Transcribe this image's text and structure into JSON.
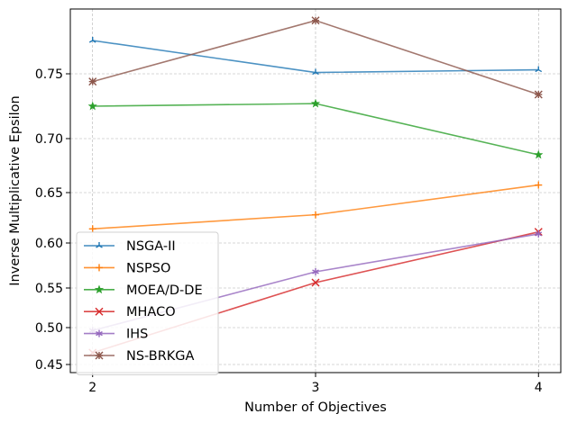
{
  "chart_data": {
    "type": "line",
    "title": "",
    "xlabel": "Number of Objectives",
    "ylabel": "Inverse Multiplicative Epsilon",
    "x": [
      2,
      3,
      4
    ],
    "xlim": [
      1.9,
      4.1
    ],
    "xticks": [
      2,
      3,
      4
    ],
    "yticks": [
      {
        "label": "0.45",
        "value": 0.45
      },
      {
        "label": "0.50",
        "value": 0.5
      },
      {
        "label": "0.55",
        "value": 0.55
      },
      {
        "label": "0.60",
        "value": 0.6
      },
      {
        "label": "0.65",
        "value": 0.65
      },
      {
        "label": "0.70",
        "value": 0.7
      },
      {
        "label": "0.75",
        "value": 0.75
      }
    ],
    "grid": true,
    "legend_position": "lower-left",
    "series": [
      {
        "name": "NSGA-II",
        "values": [
          0.775,
          0.751,
          0.753
        ],
        "color": "#1f77b4",
        "marker": "tri-star"
      },
      {
        "name": "NSPSO",
        "values": [
          0.614,
          0.628,
          0.657
        ],
        "color": "#ff7f0e",
        "marker": "plus"
      },
      {
        "name": "MOEA/D-DE",
        "values": [
          0.725,
          0.727,
          0.685
        ],
        "color": "#2ca02c",
        "marker": "star"
      },
      {
        "name": "MHACO",
        "values": [
          0.466,
          0.556,
          0.611
        ],
        "color": "#d62728",
        "marker": "x-cross"
      },
      {
        "name": "IHS",
        "values": [
          0.496,
          0.568,
          0.609
        ],
        "color": "#9467bd",
        "marker": "asterisk"
      },
      {
        "name": "NS-BRKGA",
        "values": [
          0.744,
          0.79,
          0.734
        ],
        "color": "#8c564b",
        "marker": "asterisk-x"
      }
    ]
  }
}
